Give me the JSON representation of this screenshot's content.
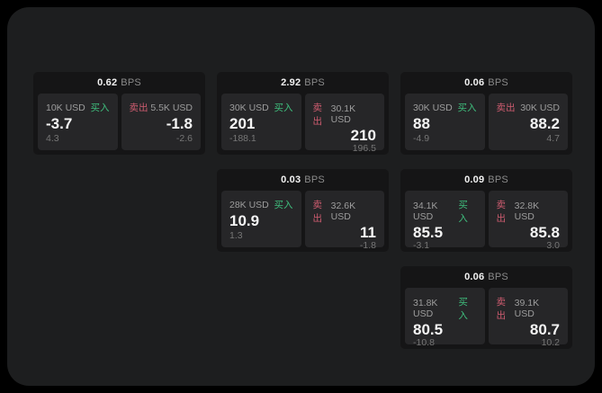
{
  "labels": {
    "bps_unit": "BPS",
    "buy": "买入",
    "sell": "卖出"
  },
  "colors": {
    "frame": "#000000",
    "surface_bg": "#1d1e1f",
    "card_bg": "#151516",
    "panel_bg": "#262628",
    "buy_accent": "#3fbe7d",
    "sell_accent": "#cf5c70",
    "value_text": "#f5f5f5",
    "label_text": "#9d9d9d",
    "delta_text": "#767676"
  },
  "cards": [
    {
      "bps": "0.62",
      "buy": {
        "size": "10K USD",
        "price": "-3.7",
        "delta": "4.3"
      },
      "sell": {
        "size": "5.5K USD",
        "price": "-1.8",
        "delta": "-2.6"
      }
    },
    {
      "bps": "2.92",
      "buy": {
        "size": "30K USD",
        "price": "201",
        "delta": "-188.1"
      },
      "sell": {
        "size": "30.1K USD",
        "price": "210",
        "delta": "196.5"
      }
    },
    {
      "bps": "0.06",
      "buy": {
        "size": "30K USD",
        "price": "88",
        "delta": "-4.9"
      },
      "sell": {
        "size": "30K USD",
        "price": "88.2",
        "delta": "4.7"
      }
    },
    {
      "bps": "0.03",
      "buy": {
        "size": "28K USD",
        "price": "10.9",
        "delta": "1.3"
      },
      "sell": {
        "size": "32.6K USD",
        "price": "11",
        "delta": "-1.8"
      }
    },
    {
      "bps": "0.09",
      "buy": {
        "size": "34.1K USD",
        "price": "85.5",
        "delta": "-3.1"
      },
      "sell": {
        "size": "32.8K USD",
        "price": "85.8",
        "delta": "3.0"
      }
    },
    {
      "bps": "0.06",
      "buy": {
        "size": "31.8K USD",
        "price": "80.5",
        "delta": "-10.8"
      },
      "sell": {
        "size": "39.1K USD",
        "price": "80.7",
        "delta": "10.2"
      }
    }
  ]
}
